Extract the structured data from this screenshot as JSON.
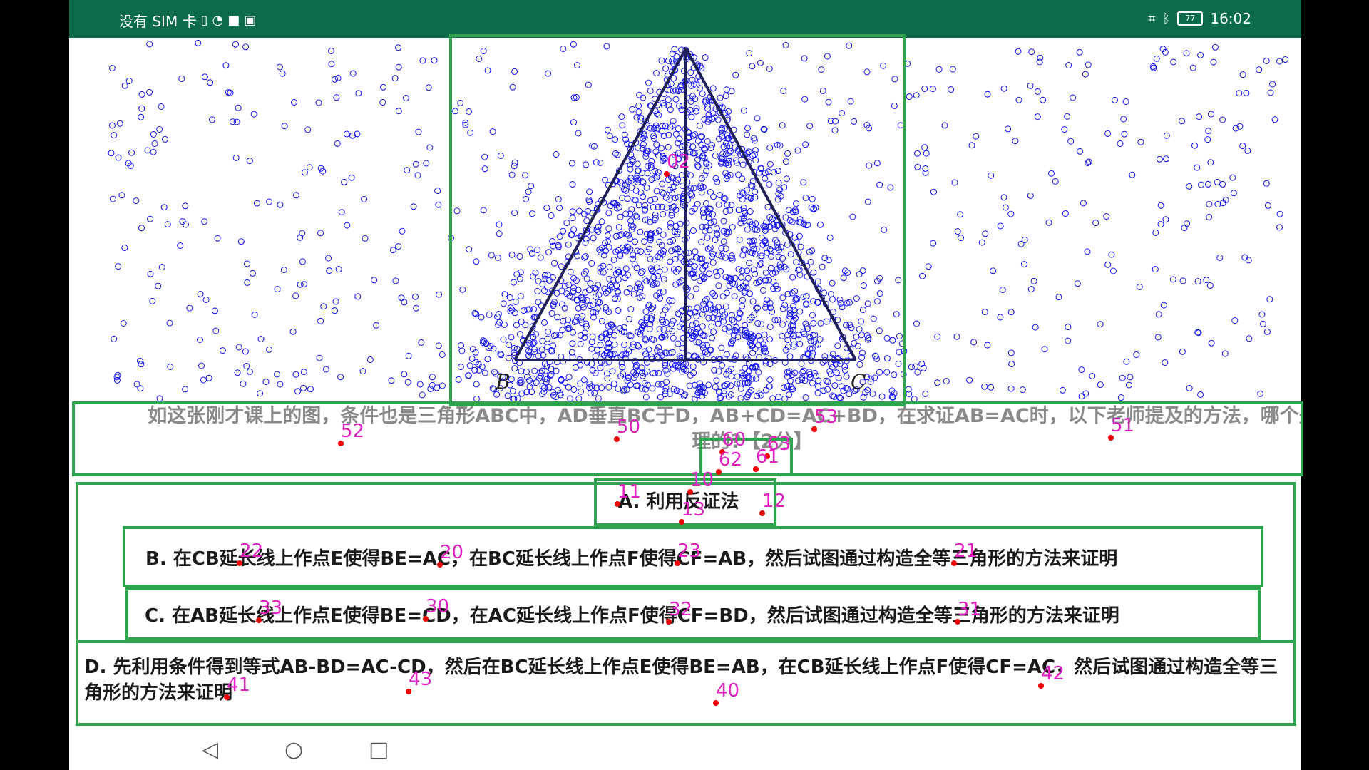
{
  "status": {
    "left_text": "没有 SIM 卡",
    "battery": "77",
    "time": "16:02"
  },
  "figure": {
    "label_b": "B",
    "label_c": "C"
  },
  "question": {
    "text": "如这张刚才课上的图，条件也是三角形ABC中，AD垂直BC于D，AB+CD=AC+BD，在求证AB=AC时，以下老师提及的方法，哪个是不合理的?【2分】"
  },
  "options": {
    "a": "A. 利用反证法",
    "b": "B. 在CB延长线上作点E使得BE=AC，在BC延长线上作点F使得CF=AB，然后试图通过构造全等三角形的方法来证明",
    "c": "C. 在AB延长线上作点E使得BE=CD，在AC延长线上作点F使得CF=BD，然后试图通过构造全等三角形的方法来证明",
    "d": "D. 先利用条件得到等式AB-BD=AC-CD，然后在BC延长线上作点E使得BE=AB，在CB延长线上作点F使得CF=AC，然后试图通过构造全等三角形的方法来证明"
  },
  "navbar": {
    "back": "◁",
    "home": "○",
    "recents": "□"
  },
  "annotations": [
    "02",
    "52",
    "50",
    "53",
    "51",
    "60",
    "63",
    "62",
    "61",
    "11",
    "10",
    "12",
    "13",
    "22",
    "20",
    "23",
    "21",
    "33",
    "30",
    "32",
    "31",
    "41",
    "43",
    "40",
    "42"
  ],
  "colors": {
    "statusbar": "#0b6b4a",
    "box": "#2fa34f",
    "scatter": "#1010ee",
    "annotation": "#e020c0",
    "dot": "#ee0000"
  }
}
